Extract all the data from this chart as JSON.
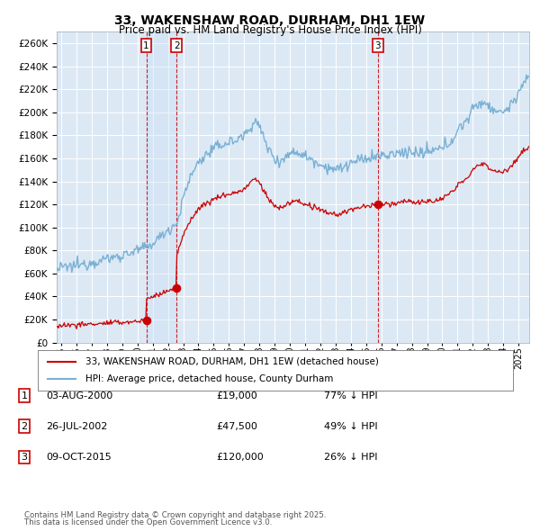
{
  "title_line1": "33, WAKENSHAW ROAD, DURHAM, DH1 1EW",
  "title_line2": "Price paid vs. HM Land Registry's House Price Index (HPI)",
  "legend_label_red": "33, WAKENSHAW ROAD, DURHAM, DH1 1EW (detached house)",
  "legend_label_blue": "HPI: Average price, detached house, County Durham",
  "footer_line1": "Contains HM Land Registry data © Crown copyright and database right 2025.",
  "footer_line2": "This data is licensed under the Open Government Licence v3.0.",
  "transactions": [
    {
      "num": 1,
      "date": "03-AUG-2000",
      "price": "£19,000",
      "hpi": "77% ↓ HPI",
      "year": 2000.58
    },
    {
      "num": 2,
      "date": "26-JUL-2002",
      "price": "£47,500",
      "hpi": "49% ↓ HPI",
      "year": 2002.57
    },
    {
      "num": 3,
      "date": "09-OCT-2015",
      "price": "£120,000",
      "hpi": "26% ↓ HPI",
      "year": 2015.77
    }
  ],
  "sale_prices": [
    19000,
    47500,
    120000
  ],
  "ylim": [
    0,
    270000
  ],
  "xlim_start": 1994.7,
  "xlim_end": 2025.7,
  "background_color": "#ffffff",
  "plot_bg_color": "#dce9f5",
  "grid_color": "#ffffff",
  "red_color": "#cc0000",
  "blue_color": "#7ab0d4",
  "highlight_color": "#ccdff5"
}
